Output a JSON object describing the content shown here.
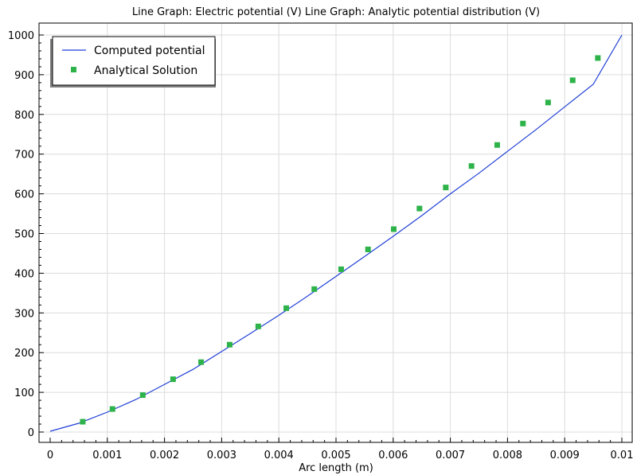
{
  "chart_data": {
    "type": "line",
    "title": "Line Graph: Electric potential (V)  Line Graph: Analytic potential distribution (V)",
    "xlabel": "Arc length (m)",
    "ylabel": "",
    "xlim": [
      0,
      0.01
    ],
    "ylim": [
      0,
      1000
    ],
    "x_ticks": [
      "0",
      "0.001",
      "0.002",
      "0.003",
      "0.004",
      "0.005",
      "0.006",
      "0.007",
      "0.008",
      "0.009",
      "0.01"
    ],
    "y_ticks": [
      "0",
      "100",
      "200",
      "300",
      "400",
      "500",
      "600",
      "700",
      "800",
      "900",
      "1000"
    ],
    "grid": true,
    "legend_position": "top-left",
    "series": [
      {
        "name": "Computed potential",
        "style": "line",
        "color": "#1f3fd6",
        "x": [
          0,
          0.0005,
          0.001,
          0.0015,
          0.002,
          0.0025,
          0.003,
          0.0035,
          0.004,
          0.0045,
          0.005,
          0.0055,
          0.006,
          0.0065,
          0.007,
          0.0075,
          0.008,
          0.0085,
          0.009,
          0.0095,
          0.01
        ],
        "y": [
          2,
          22,
          50,
          82,
          120,
          158,
          203,
          248,
          294,
          342,
          392,
          442,
          493,
          545,
          600,
          652,
          707,
          762,
          819,
          876,
          1000
        ]
      },
      {
        "name": "Analytical Solution",
        "style": "markers",
        "color": "#2db34a",
        "x": [
          0.00057,
          0.00109,
          0.00162,
          0.00215,
          0.00264,
          0.00314,
          0.00364,
          0.00413,
          0.00462,
          0.00509,
          0.00556,
          0.00601,
          0.00646,
          0.00692,
          0.00737,
          0.00782,
          0.00827,
          0.00871,
          0.00914,
          0.00958
        ],
        "y": [
          26,
          58,
          93,
          133,
          176,
          220,
          266,
          312,
          360,
          410,
          460,
          511,
          563,
          616,
          670,
          723,
          777,
          830,
          886,
          942
        ]
      }
    ]
  }
}
